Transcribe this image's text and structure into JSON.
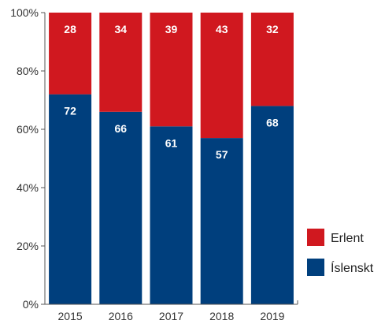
{
  "chart_data": {
    "type": "bar",
    "stacked": true,
    "percent": true,
    "categories": [
      "2015",
      "2016",
      "2017",
      "2018",
      "2019"
    ],
    "series": [
      {
        "name": "Íslenskt",
        "values": [
          72,
          66,
          61,
          57,
          68
        ],
        "color": "#003f7d"
      },
      {
        "name": "Erlent",
        "values": [
          28,
          34,
          39,
          43,
          32
        ],
        "color": "#d0181f"
      }
    ],
    "ylim": [
      0,
      100
    ],
    "yticks": [
      "0%",
      "20%",
      "40%",
      "60%",
      "80%",
      "100%"
    ],
    "title": "",
    "xlabel": "",
    "ylabel": "",
    "legend": {
      "position": "right",
      "order": [
        "Erlent",
        "Íslenskt"
      ]
    },
    "grid": false
  }
}
